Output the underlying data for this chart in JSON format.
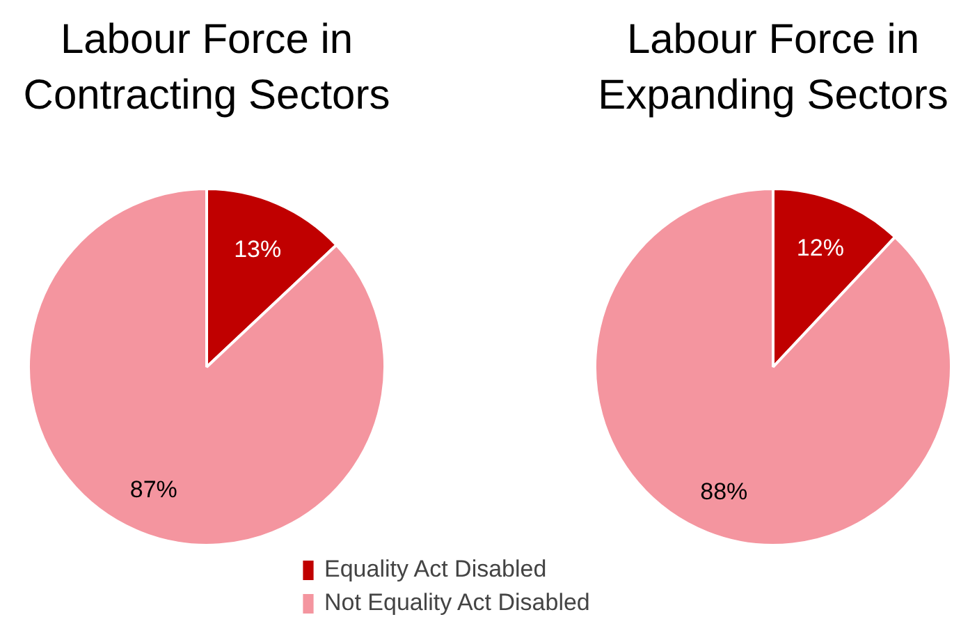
{
  "chart_data": [
    {
      "type": "pie",
      "title": "Labour Force in Contracting Sectors",
      "categories": [
        "Equality Act Disabled",
        "Not Equality Act Disabled"
      ],
      "values": [
        13,
        87
      ],
      "colors": [
        "#c00000",
        "#f4959f"
      ],
      "value_labels": [
        "13%",
        "87%"
      ],
      "legend": "bottom"
    },
    {
      "type": "pie",
      "title": "Labour Force in Expanding Sectors",
      "values": [
        12,
        88
      ],
      "colors": [
        "#c00000",
        "#f4959f"
      ],
      "value_labels": [
        "12%",
        "88%"
      ]
    }
  ]
}
